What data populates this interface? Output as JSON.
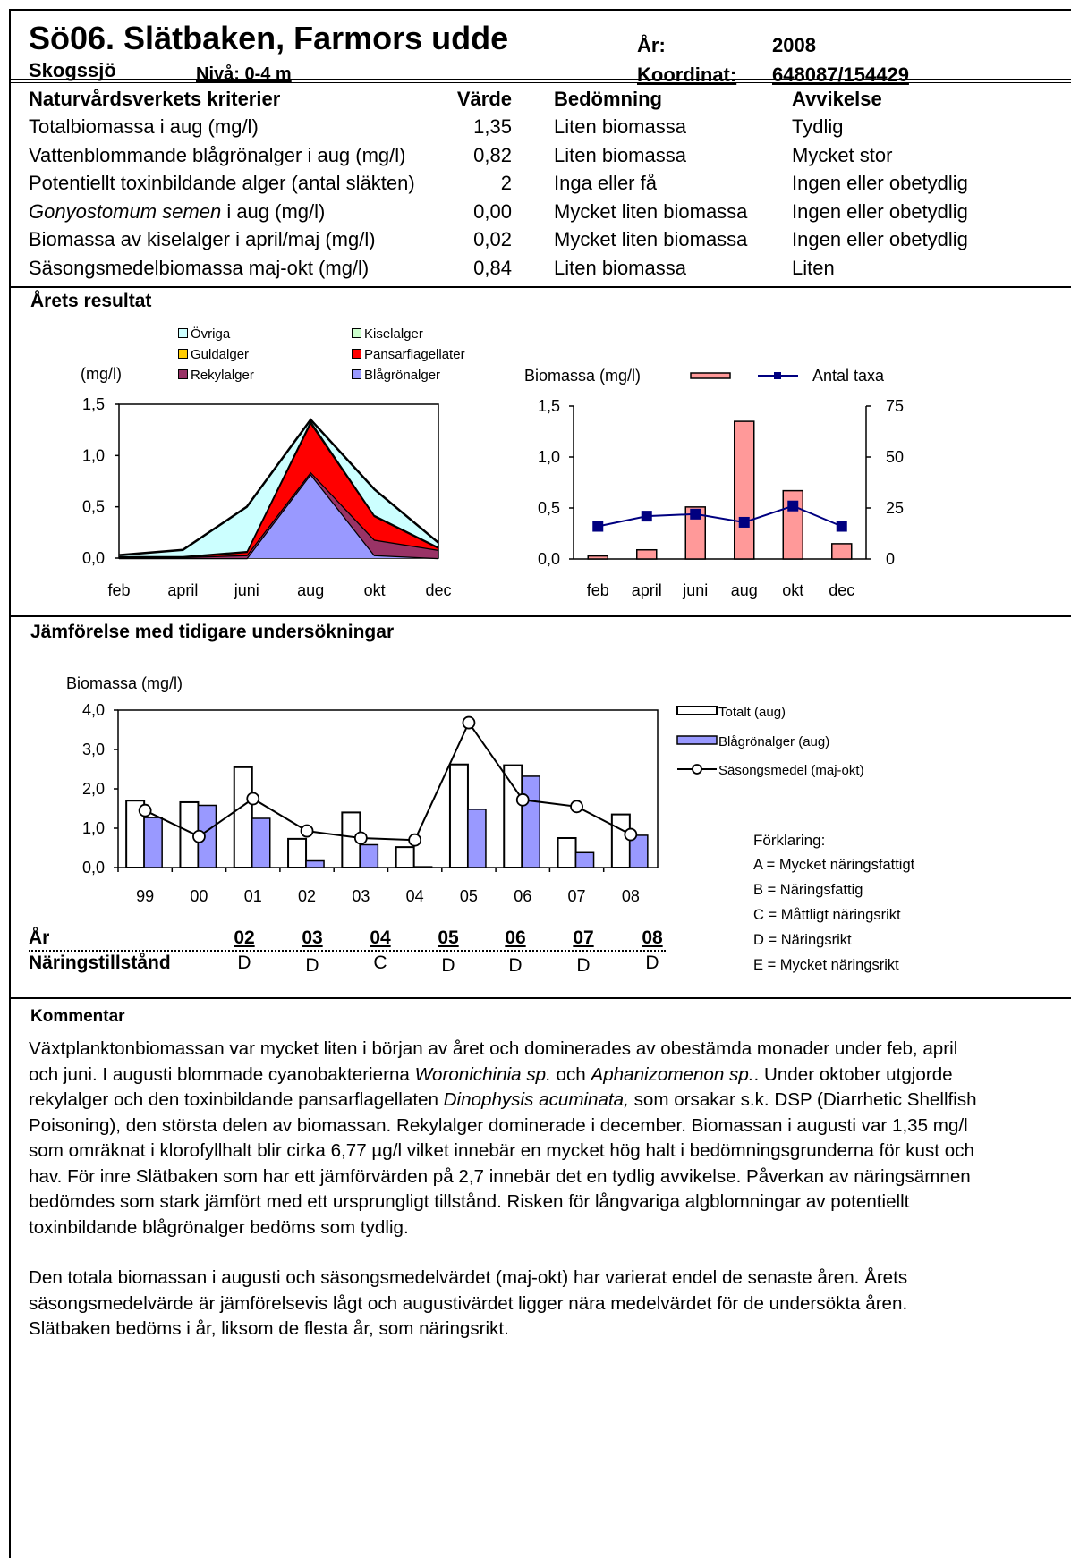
{
  "header": {
    "title": "Sö06. Slätbaken, Farmors udde",
    "lake_type": "Skogssjö",
    "level": "Nivå: 0-4 m",
    "year_label": "År:",
    "year": "2008",
    "coord_label": "Koordinat:",
    "coord": "648087/154429"
  },
  "criteria": {
    "headers": [
      "Naturvårdsverkets kriterier",
      "Värde",
      "Bedömning",
      "Avvikelse"
    ],
    "rows": [
      {
        "name": "Totalbiomassa i aug (mg/l)",
        "name_italic": "",
        "value": "1,35",
        "assessment": "Liten biomassa",
        "deviation": "Tydlig"
      },
      {
        "name": "Vattenblommande blågrönalger i aug (mg/l)",
        "name_italic": "",
        "value": "0,82",
        "assessment": "Liten biomassa",
        "deviation": "Mycket stor"
      },
      {
        "name": "Potentiellt toxinbildande alger (antal släkten)",
        "name_italic": "",
        "value": "2",
        "assessment": "Inga eller få",
        "deviation": "Ingen eller obetydlig"
      },
      {
        "name": " i aug (mg/l)",
        "name_italic": "Gonyostomum semen",
        "value": "0,00",
        "assessment": "Mycket liten biomassa",
        "deviation": "Ingen eller obetydlig"
      },
      {
        "name": "Biomassa av kiselalger i april/maj (mg/l)",
        "name_italic": "",
        "value": "0,02",
        "assessment": "Mycket liten biomassa",
        "deviation": "Ingen eller obetydlig"
      },
      {
        "name": "Säsongsmedelbiomassa maj-okt (mg/l)",
        "name_italic": "",
        "value": "0,84",
        "assessment": "Liten biomassa",
        "deviation": "Liten"
      }
    ]
  },
  "results": {
    "title": "Årets resultat"
  },
  "comparison": {
    "title": "Jämförelse med tidigare undersökningar",
    "explanation_title": "Förklaring:",
    "explanation": [
      "A = Mycket näringsfattigt",
      "B = Näringsfattig",
      "C = Måttligt näringsrikt",
      "D = Näringsrikt",
      "E = Mycket näringsrikt"
    ],
    "state_table": {
      "row1_label": "År",
      "row2_label": "Näringstillstånd",
      "years": [
        "02",
        "03",
        "04",
        "05",
        "06",
        "07",
        "08"
      ],
      "states": [
        "D",
        "D",
        "C",
        "D",
        "D",
        "D",
        "D"
      ]
    }
  },
  "comment": {
    "title": "Kommentar",
    "p1_parts": [
      "Växtplanktonbiomassan var mycket liten i början av året och dominerades av obestämda monader under feb, april och juni. I augusti blommade cyanobakterierna ",
      "Woronichinia sp.",
      " och ",
      "Aphanizomenon sp.",
      ". Under oktober  utgjorde rekylalger och den toxinbildande pansarflagellaten ",
      "Dinophysis acuminata,",
      " som orsakar s.k. DSP (Diarrhetic Shellfish Poisoning), den största delen av biomassan. Rekylalger dominerade i december. Biomassan i augusti var 1,35 mg/l som omräknat i klorofyllhalt blir cirka 6,77 µg/l vilket innebär en mycket hög halt i bedömningsgrunderna för kust och hav. För inre Slätbaken som har ett jämförvärden på 2,7 innebär det en tydlig avvikelse. Påverkan av näringsämnen bedömdes som stark jämfört med ett ursprungligt tillstånd. Risken för långvariga algblomningar av potentiellt toxinbildande blågrönalger bedöms som tydlig."
    ],
    "p2": "Den totala biomassan i augusti och säsongsmedelvärdet (maj-okt) har varierat endel de senaste  åren. Årets säsongsmedelvärde är jämförelsevis lågt och augustivärdet ligger nära medelvärdet för de undersökta åren. Slätbaken bedöms i år, liksom de flesta år, som näringsrikt."
  },
  "chart_data": [
    {
      "type": "area",
      "ylabel": "(mg/l)",
      "categories": [
        "feb",
        "april",
        "juni",
        "aug",
        "okt",
        "dec"
      ],
      "ylim": [
        0,
        1.5
      ],
      "yticks": [
        "0,0",
        "0,5",
        "1,0",
        "1,5"
      ],
      "stacked": true,
      "legend_placement": "top",
      "series": [
        {
          "name": "Blågrönalger",
          "color": "#9999ff",
          "values": [
            0.0,
            0.0,
            0.0,
            0.82,
            0.03,
            0.0
          ]
        },
        {
          "name": "Rekylalger",
          "color": "#993366",
          "values": [
            0.01,
            0.01,
            0.03,
            0.02,
            0.15,
            0.08
          ]
        },
        {
          "name": "Pansarflagellater",
          "color": "#ff0000",
          "values": [
            0.0,
            0.0,
            0.03,
            0.48,
            0.23,
            0.02
          ]
        },
        {
          "name": "Guldalger",
          "color": "#ffcc00",
          "values": [
            0.01,
            0.01,
            0.01,
            0.02,
            0.01,
            0.01
          ]
        },
        {
          "name": "Kiselalger",
          "color": "#ccffcc",
          "values": [
            0.0,
            0.0,
            0.0,
            0.0,
            0.0,
            0.0
          ]
        },
        {
          "name": "Övriga",
          "color": "#ccffff",
          "values": [
            0.01,
            0.06,
            0.43,
            0.01,
            0.25,
            0.04
          ]
        }
      ],
      "legend_order": [
        "Övriga",
        "Kiselalger",
        "Guldalger",
        "Pansarflagellater",
        "Rekylalger",
        "Blågrönalger"
      ]
    },
    {
      "type": "bar",
      "categories": [
        "feb",
        "april",
        "juni",
        "aug",
        "okt",
        "dec"
      ],
      "ylabel": "Biomassa (mg/l)",
      "ylim": [
        0,
        1.5
      ],
      "yticks": [
        "0,0",
        "0,5",
        "1,0",
        "1,5"
      ],
      "y2lim": [
        0,
        75
      ],
      "y2ticks": [
        "0",
        "25",
        "50",
        "75"
      ],
      "series": [
        {
          "name": "Biomassa (mg/l)",
          "type": "bar",
          "axis": "left",
          "color": "#ff9999",
          "values": [
            0.03,
            0.09,
            0.51,
            1.35,
            0.67,
            0.15
          ]
        },
        {
          "name": "Antal taxa",
          "type": "line",
          "axis": "right",
          "color": "#000080",
          "values": [
            16,
            21,
            22,
            18,
            26,
            16
          ]
        }
      ]
    },
    {
      "type": "bar",
      "ylabel": "Biomassa (mg/l)",
      "categories": [
        "99",
        "00",
        "01",
        "02",
        "03",
        "04",
        "05",
        "06",
        "07",
        "08"
      ],
      "ylim": [
        0,
        4
      ],
      "yticks": [
        "0,0",
        "1,0",
        "2,0",
        "3,0",
        "4,0"
      ],
      "legend_placement": "right",
      "series": [
        {
          "name": "Totalt (aug)",
          "type": "bar",
          "color": "#ffffff",
          "values": [
            1.7,
            1.66,
            2.55,
            0.73,
            1.4,
            0.52,
            2.62,
            2.6,
            0.75,
            1.35
          ]
        },
        {
          "name": "Blågrönalger (aug)",
          "type": "bar",
          "color": "#9999ff",
          "values": [
            1.27,
            1.58,
            1.25,
            0.17,
            0.58,
            0.02,
            1.48,
            2.32,
            0.38,
            0.82
          ]
        },
        {
          "name": "Säsongsmedel (maj-okt)",
          "type": "line",
          "color": "#000000",
          "values": [
            1.45,
            0.79,
            1.75,
            0.93,
            0.75,
            0.7,
            3.68,
            1.72,
            1.55,
            0.84
          ]
        }
      ]
    }
  ]
}
